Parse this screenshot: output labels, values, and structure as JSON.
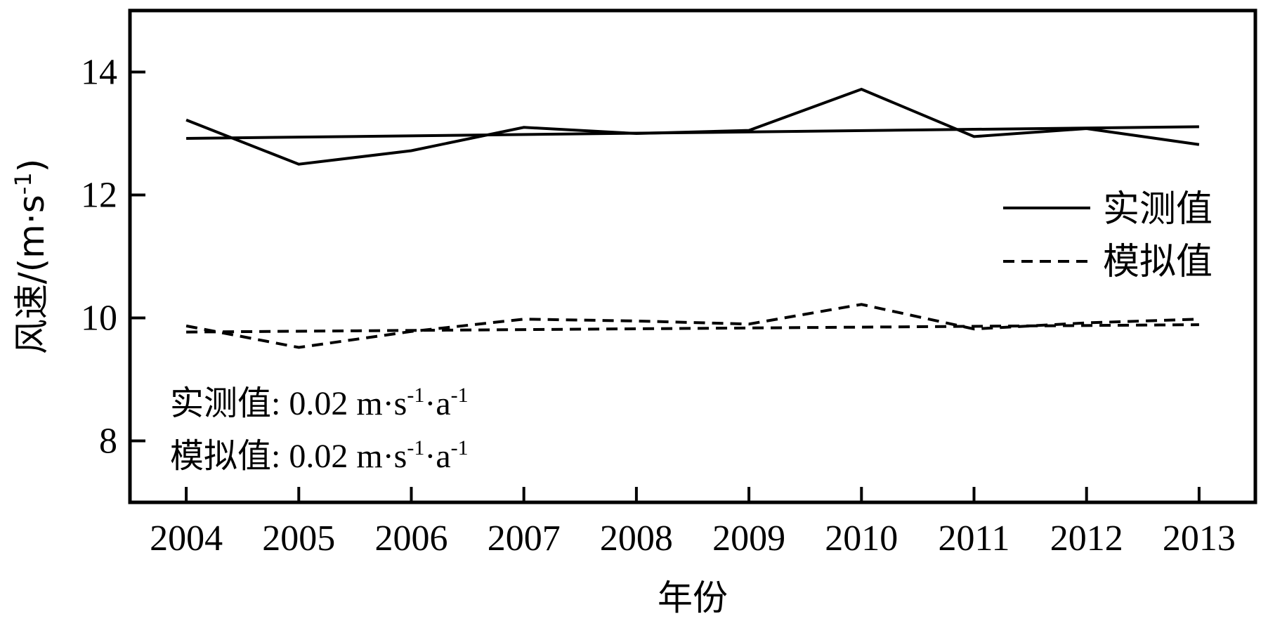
{
  "chart_data": {
    "type": "line",
    "xlabel": "年份",
    "ylabel": "风速/(m·s",
    "ylabel_sup": "-1",
    "ylabel_close": ")",
    "xlim": [
      2003.5,
      2013.5
    ],
    "ylim": [
      7,
      15
    ],
    "yticks": [
      8,
      10,
      12,
      14
    ],
    "x": [
      2004,
      2005,
      2006,
      2007,
      2008,
      2009,
      2010,
      2011,
      2012,
      2013
    ],
    "x_labels": [
      "2004",
      "2005",
      "2006",
      "2007",
      "2008",
      "2009",
      "2010",
      "2011",
      "2012",
      "2013"
    ],
    "series": [
      {
        "name": "实测值",
        "style": "solid",
        "values": [
          13.22,
          12.5,
          12.72,
          13.1,
          13.0,
          13.05,
          13.72,
          12.95,
          13.08,
          12.82
        ],
        "trend": [
          12.92,
          13.11
        ]
      },
      {
        "name": "模拟值",
        "style": "dashed",
        "values": [
          9.87,
          9.52,
          9.78,
          9.98,
          9.95,
          9.9,
          10.22,
          9.82,
          9.92,
          9.98
        ],
        "trend": [
          9.77,
          9.89
        ]
      }
    ],
    "legend_position": "right",
    "grid": false,
    "annotations": [
      {
        "label": "实测值",
        "sep": ": ",
        "value": "0.02 m·s",
        "sup1": "-1",
        "mid": "·a",
        "sup2": "-1"
      },
      {
        "label": "模拟值",
        "sep": ": ",
        "value": "0.02 m·s",
        "sup1": "-1",
        "mid": "·a",
        "sup2": "-1"
      }
    ],
    "colors": {
      "line": "#000000",
      "frame": "#000000",
      "background": "#ffffff"
    }
  }
}
